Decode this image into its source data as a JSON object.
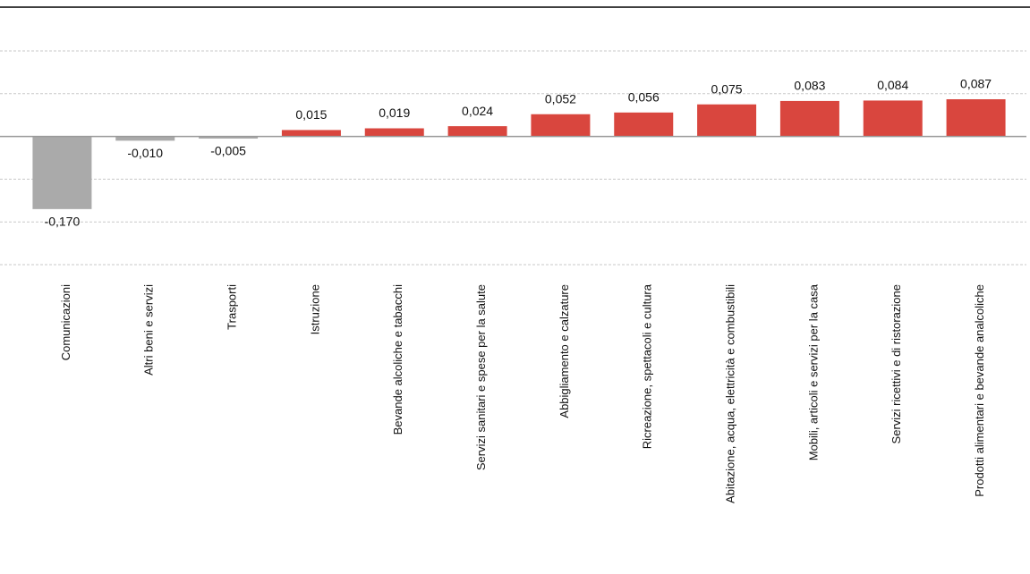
{
  "chart_data": {
    "type": "bar",
    "categories": [
      "Comunicazioni",
      "Altri beni e servizi",
      "Trasporti",
      "Istruzione",
      "Bevande alcoliche e tabacchi",
      "Servizi sanitari e spese per la salute",
      "Abbigliamento e calzature",
      "Ricreazione, spettacoli e cultura",
      "Abitazione, acqua, elettricità e combustibili",
      "Mobili, articoli e servizi per la casa",
      "Servizi ricettivi e di ristorazione",
      "Prodotti alimentari e bevande analcoliche"
    ],
    "values": [
      -0.17,
      -0.01,
      -0.005,
      0.015,
      0.019,
      0.024,
      0.052,
      0.056,
      0.075,
      0.083,
      0.084,
      0.087
    ],
    "value_labels": [
      "-0,170",
      "-0,010",
      "-0,005",
      "0,015",
      "0,019",
      "0,024",
      "0,052",
      "0,056",
      "0,075",
      "0,083",
      "0,084",
      "0,087"
    ],
    "positive_color": "#d9463e",
    "negative_color": "#aaaaaa",
    "ylim": [
      -0.3,
      0.2
    ],
    "yticks": [
      -0.3,
      -0.2,
      -0.1,
      0,
      0.1,
      0.2
    ],
    "grid": true
  }
}
